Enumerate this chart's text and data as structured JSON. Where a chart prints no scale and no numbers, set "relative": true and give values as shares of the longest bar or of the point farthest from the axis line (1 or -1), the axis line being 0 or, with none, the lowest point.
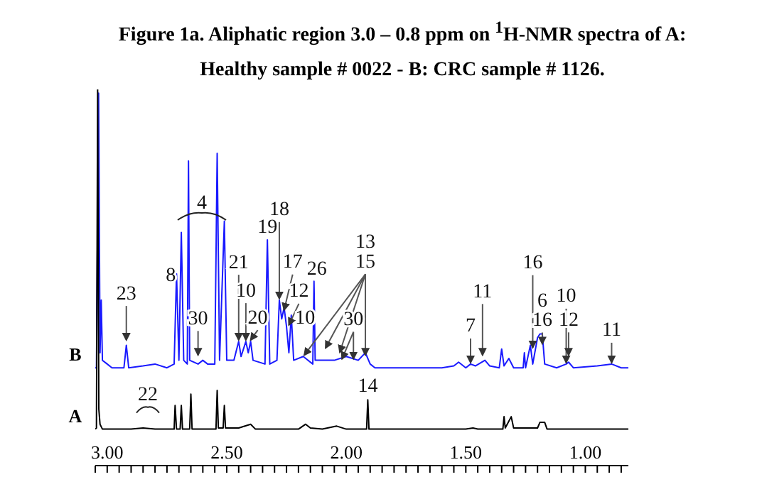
{
  "chart_data": {
    "type": "line",
    "title": "Figure 1a. Aliphatic region 3.0 – 0.8 ppm on $^{1}$H-NMR spectra of A: Healthy sample # 0022 - B: CRC sample # 1126.",
    "relative": true,
    "marker": "none",
    "tick_labels": "x",
    "xlim": [
      3.05,
      0.82
    ],
    "xticks": [
      {
        "value": 3.05,
        "label": null
      },
      {
        "value": 3.0,
        "label": "3.00"
      },
      {
        "value": 2.95,
        "label": null
      },
      {
        "value": 2.9,
        "label": null
      },
      {
        "value": 2.85,
        "label": null
      },
      {
        "value": 2.8,
        "label": null
      },
      {
        "value": 2.75,
        "label": null
      },
      {
        "value": 2.7,
        "label": null
      },
      {
        "value": 2.65,
        "label": null
      },
      {
        "value": 2.6,
        "label": null
      },
      {
        "value": 2.55,
        "label": null
      },
      {
        "value": 2.5,
        "label": "2.50"
      },
      {
        "value": 2.45,
        "label": null
      },
      {
        "value": 2.4,
        "label": null
      },
      {
        "value": 2.35,
        "label": null
      },
      {
        "value": 2.3,
        "label": null
      },
      {
        "value": 2.25,
        "label": null
      },
      {
        "value": 2.2,
        "label": null
      },
      {
        "value": 2.15,
        "label": null
      },
      {
        "value": 2.1,
        "label": null
      },
      {
        "value": 2.05,
        "label": null
      },
      {
        "value": 2.0,
        "label": "2.00"
      },
      {
        "value": 1.95,
        "label": null
      },
      {
        "value": 1.9,
        "label": null
      },
      {
        "value": 1.85,
        "label": null
      },
      {
        "value": 1.8,
        "label": null
      },
      {
        "value": 1.75,
        "label": null
      },
      {
        "value": 1.7,
        "label": null
      },
      {
        "value": 1.65,
        "label": null
      },
      {
        "value": 1.6,
        "label": null
      },
      {
        "value": 1.55,
        "label": null
      },
      {
        "value": 1.5,
        "label": "1.50"
      },
      {
        "value": 1.45,
        "label": null
      },
      {
        "value": 1.4,
        "label": null
      },
      {
        "value": 1.35,
        "label": null
      },
      {
        "value": 1.3,
        "label": null
      },
      {
        "value": 1.25,
        "label": null
      },
      {
        "value": 1.2,
        "label": null
      },
      {
        "value": 1.15,
        "label": null
      },
      {
        "value": 1.1,
        "label": null
      },
      {
        "value": 1.05,
        "label": null
      },
      {
        "value": 1.0,
        "label": "1.00"
      },
      {
        "value": 0.95,
        "label": null
      },
      {
        "value": 0.9,
        "label": null
      },
      {
        "value": 0.85,
        "label": null
      }
    ],
    "series": [
      {
        "name": "B",
        "color": "#1a1aff",
        "x": [
          3.05,
          3.045,
          3.036,
          3.03,
          3.025,
          3.02,
          3.0,
          2.98,
          2.93,
          2.92,
          2.91,
          2.85,
          2.8,
          2.75,
          2.72,
          2.71,
          2.7,
          2.69,
          2.68,
          2.665,
          2.66,
          2.655,
          2.62,
          2.6,
          2.58,
          2.55,
          2.54,
          2.53,
          2.51,
          2.5,
          2.47,
          2.45,
          2.44,
          2.42,
          2.41,
          2.4,
          2.39,
          2.34,
          2.33,
          2.32,
          2.29,
          2.28,
          2.27,
          2.26,
          2.25,
          2.24,
          2.23,
          2.22,
          2.18,
          2.14,
          2.135,
          2.13,
          2.05,
          2.0,
          1.95,
          1.92,
          1.9,
          1.88,
          1.6,
          1.55,
          1.53,
          1.5,
          1.48,
          1.46,
          1.42,
          1.4,
          1.36,
          1.35,
          1.34,
          1.32,
          1.3,
          1.26,
          1.255,
          1.25,
          1.23,
          1.22,
          1.2,
          1.19,
          1.18,
          1.17,
          1.12,
          1.08,
          1.07,
          1.05,
          0.95,
          0.89,
          0.85,
          0.82
        ],
        "values": [
          0.26,
          0.26,
          0.99,
          0.3,
          0.44,
          0.28,
          0.27,
          0.26,
          0.26,
          0.32,
          0.26,
          0.265,
          0.27,
          0.26,
          0.27,
          0.51,
          0.28,
          0.62,
          0.28,
          0.27,
          0.81,
          0.28,
          0.27,
          0.28,
          0.27,
          0.27,
          0.83,
          0.28,
          0.65,
          0.28,
          0.28,
          0.33,
          0.29,
          0.33,
          0.3,
          0.33,
          0.28,
          0.27,
          0.6,
          0.27,
          0.28,
          0.44,
          0.39,
          0.42,
          0.37,
          0.3,
          0.4,
          0.28,
          0.29,
          0.27,
          0.49,
          0.28,
          0.28,
          0.29,
          0.28,
          0.3,
          0.27,
          0.26,
          0.26,
          0.265,
          0.275,
          0.26,
          0.27,
          0.265,
          0.28,
          0.265,
          0.26,
          0.31,
          0.265,
          0.285,
          0.26,
          0.26,
          0.3,
          0.26,
          0.32,
          0.27,
          0.34,
          0.35,
          0.35,
          0.27,
          0.26,
          0.27,
          0.275,
          0.26,
          0.265,
          0.27,
          0.26,
          0.26
        ]
      },
      {
        "name": "A",
        "color": "#000000",
        "x": [
          3.05,
          3.045,
          3.04,
          3.035,
          3.03,
          3.02,
          2.9,
          2.85,
          2.8,
          2.72,
          2.716,
          2.71,
          2.695,
          2.69,
          2.685,
          2.655,
          2.65,
          2.645,
          2.545,
          2.54,
          2.535,
          2.515,
          2.51,
          2.505,
          2.45,
          2.4,
          2.38,
          2.2,
          2.17,
          2.15,
          2.1,
          2.04,
          2.0,
          1.915,
          1.91,
          1.905,
          1.5,
          1.47,
          1.45,
          1.345,
          1.34,
          1.335,
          1.31,
          1.3,
          1.2,
          1.19,
          1.17,
          1.16,
          0.82
        ],
        "values": [
          0.097,
          0.1,
          1.0,
          0.15,
          0.11,
          0.097,
          0.097,
          0.1,
          0.097,
          0.097,
          0.16,
          0.097,
          0.097,
          0.16,
          0.097,
          0.097,
          0.19,
          0.097,
          0.097,
          0.2,
          0.1,
          0.1,
          0.16,
          0.1,
          0.1,
          0.11,
          0.097,
          0.097,
          0.11,
          0.1,
          0.097,
          0.105,
          0.097,
          0.097,
          0.175,
          0.097,
          0.097,
          0.1,
          0.097,
          0.097,
          0.13,
          0.1,
          0.13,
          0.1,
          0.1,
          0.115,
          0.115,
          0.097,
          0.097
        ]
      }
    ],
    "annotations": [
      {
        "text": "23",
        "x": 2.92,
        "y": 0.33
      },
      {
        "text": "8",
        "x": 2.71,
        "y": 0.51
      },
      "4",
      {
        "text": "30",
        "x": 2.62,
        "y": 0.29
      },
      {
        "text": "21",
        "x": 2.45,
        "y": 0.33
      },
      {
        "text": "10",
        "x": 2.42,
        "y": 0.33
      },
      {
        "text": "20",
        "x": 2.4,
        "y": 0.33
      },
      {
        "text": "19",
        "x": 2.33,
        "y": 0.6
      },
      {
        "text": "18",
        "x": 2.28,
        "y": 0.44
      },
      {
        "text": "17",
        "x": 2.26,
        "y": 0.41
      },
      {
        "text": "12",
        "x": 2.24,
        "y": 0.37
      },
      {
        "text": "10",
        "x": 2.22,
        "y": 0.36
      },
      {
        "text": "26",
        "x": 2.135,
        "y": 0.49
      },
      {
        "text": "13",
        "x": 1.92,
        "y": 0.29
      },
      {
        "text": "15",
        "x": 1.92,
        "y": 0.29
      },
      {
        "text": "30",
        "x": 1.97,
        "y": 0.28
      },
      {
        "text": "7",
        "x": 1.48,
        "y": 0.27
      },
      {
        "text": "11",
        "x": 1.43,
        "y": 0.29
      },
      {
        "text": "16",
        "x": 1.22,
        "y": 0.31
      },
      {
        "text": "6",
        "x": 1.18,
        "y": 0.33
      },
      {
        "text": "16",
        "x": 1.18,
        "y": 0.32
      },
      {
        "text": "10",
        "x": 1.08,
        "y": 0.27
      },
      {
        "text": "12",
        "x": 1.07,
        "y": 0.29
      },
      {
        "text": "11",
        "x": 0.89,
        "y": 0.27
      },
      {
        "text": "14",
        "x": 1.91,
        "y": 0.175
      },
      {
        "text": "22",
        "x": 2.83,
        "y": 0.11
      }
    ]
  }
}
